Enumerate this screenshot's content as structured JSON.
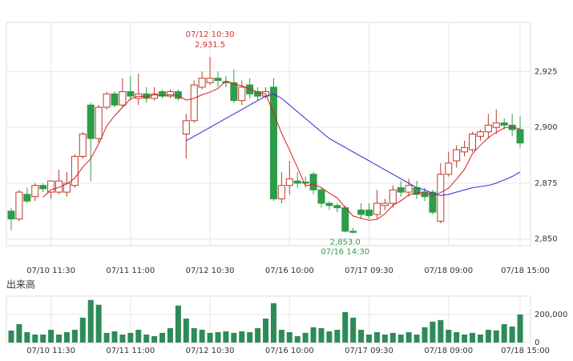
{
  "chart_data": [
    {
      "type": "candlestick",
      "categories": [
        null,
        null,
        null,
        null,
        null,
        "07/10 11:30",
        null,
        null,
        null,
        null,
        null,
        null,
        null,
        null,
        null,
        "07/11 11:00",
        null,
        null,
        null,
        null,
        null,
        null,
        null,
        null,
        null,
        "07/12 10:30",
        null,
        null,
        null,
        null,
        null,
        null,
        null,
        null,
        null,
        "07/16 10:00",
        null,
        null,
        null,
        null,
        null,
        null,
        null,
        null,
        null,
        "07/17 09:30",
        null,
        null,
        null,
        null,
        null,
        null,
        null,
        null,
        null,
        "07/18 09:00",
        null,
        null,
        null,
        null,
        null,
        null,
        null,
        null,
        "07/18 15:00"
      ],
      "open": [
        2862.5,
        2859,
        2870,
        2869,
        2874,
        2871,
        2871,
        2871,
        2874,
        2887,
        2910,
        2895,
        2909,
        2915,
        2910,
        2916,
        2913,
        2915,
        2913,
        2916,
        2914,
        2916,
        2897,
        2903,
        2918,
        2920,
        2922,
        2920.5,
        2920,
        2912,
        2919,
        2916,
        2914,
        2918,
        2868,
        2874,
        2876,
        2875.5,
        2879,
        2872,
        2866,
        2865,
        2864,
        2853.5,
        2863,
        2863,
        2861,
        2865,
        2866,
        2873,
        2871,
        2873,
        2871,
        2871,
        2858,
        2879,
        2885,
        2889,
        2890,
        2896,
        2898,
        2900,
        2902,
        2901,
        2899
      ],
      "high": [
        2864,
        2872,
        2873,
        2875,
        2875,
        2876,
        2881,
        2880,
        2888,
        2898,
        2911,
        2910,
        2916,
        2916,
        2922,
        2923,
        2924,
        2918,
        2918,
        2917,
        2917,
        2917,
        2906,
        2921,
        2925,
        2931.5,
        2925,
        2923,
        2926,
        2921,
        2922,
        2918,
        2918,
        2922,
        2880,
        2885,
        2880,
        2878,
        2880,
        2873,
        2867,
        2866,
        2865,
        2855,
        2866,
        2866,
        2872,
        2868,
        2874,
        2876,
        2877,
        2876,
        2873,
        2872,
        2884,
        2889,
        2892,
        2894,
        2898,
        2899,
        2906,
        2908,
        2904,
        2906,
        2905
      ],
      "low": [
        2854,
        2858,
        2866,
        2867,
        2871,
        2868,
        2870,
        2869,
        2873,
        2886,
        2876,
        2893,
        2908,
        2909,
        2909,
        2912,
        2910,
        2911,
        2912,
        2913,
        2913,
        2912,
        2886,
        2902,
        2917,
        2919,
        2918,
        2918,
        2911,
        2910,
        2913,
        2912,
        2913,
        2867,
        2866,
        2870,
        2873,
        2873,
        2870,
        2864,
        2863,
        2862,
        2853,
        2852.5,
        2859,
        2859,
        2859,
        2863,
        2864,
        2869,
        2869,
        2868,
        2867,
        2861,
        2857,
        2878,
        2882,
        2887,
        2889,
        2894,
        2895,
        2897,
        2899,
        2896,
        2891
      ],
      "close": [
        2859,
        2871,
        2867,
        2874,
        2872.5,
        2876,
        2876,
        2875,
        2887,
        2897,
        2895,
        2909,
        2915,
        2910,
        2916,
        2914,
        2915,
        2913,
        2915,
        2914,
        2916,
        2913,
        2903,
        2919,
        2922,
        2922,
        2921,
        2920,
        2912,
        2918,
        2915,
        2914,
        2916,
        2868,
        2874,
        2877,
        2875,
        2875,
        2872,
        2866,
        2865,
        2864,
        2853.5,
        2853,
        2861,
        2860.5,
        2866,
        2866,
        2872,
        2871,
        2874,
        2870,
        2869,
        2862,
        2879,
        2884,
        2890,
        2891,
        2897,
        2898,
        2901,
        2902,
        2901,
        2899,
        2893
      ],
      "up_color": "#c0392b",
      "down_color": "#2e9c48",
      "lines": [
        {
          "color": "#e0191f",
          "values": [
            null,
            null,
            null,
            null,
            2868.7,
            2872.1,
            2873.1,
            2874.7,
            2877.3,
            2882.2,
            2886,
            2892.6,
            2900.6,
            2905.2,
            2909,
            2912.8,
            2914,
            2913.6,
            2914.6,
            2914.2,
            2914.6,
            2914.2,
            2912.2,
            2913,
            2914.6,
            2915.8,
            2917.4,
            2920.8,
            2919.4,
            2918.6,
            2917.2,
            2915.8,
            2915,
            2906.2,
            2897.4,
            2889.8,
            2882,
            2873.8,
            2874.6,
            2873,
            2870.6,
            2868.4,
            2864.1,
            2860.3,
            2859.3,
            2858.4,
            2858.8,
            2861.3,
            2865.1,
            2867.1,
            2869.8,
            2870.6,
            2871.2,
            2869.2,
            2870.8,
            2872.8,
            2876.8,
            2881.2,
            2888.2,
            2892,
            2895.4,
            2897.8,
            2899.8,
            2900.2,
            2899.2
          ]
        },
        {
          "color": "#2a2ad8",
          "values": [
            null,
            null,
            null,
            null,
            null,
            null,
            null,
            null,
            null,
            null,
            null,
            null,
            null,
            null,
            null,
            null,
            null,
            null,
            null,
            null,
            null,
            null,
            2894,
            2896,
            2898,
            2900,
            2902,
            2904,
            2906,
            2908,
            2910,
            2912,
            2914,
            2915,
            2913,
            2910,
            2907,
            2904,
            2901,
            2898,
            2895,
            2893,
            2891,
            2889,
            2887,
            2885,
            2883,
            2881,
            2879,
            2877,
            2875,
            2873,
            2872,
            2870.5,
            2869.5,
            2870,
            2871,
            2872,
            2873,
            2873.5,
            2874,
            2875,
            2876.5,
            2878,
            2880
          ]
        }
      ],
      "annotations": [
        {
          "time": "07/12 10:30",
          "value": 2931.5,
          "label": "2,931.5"
        },
        {
          "time": "07/16 14:30",
          "value": 2853,
          "label": "2,853.0"
        }
      ],
      "ylim": [
        2847,
        2947
      ],
      "yticks": [
        {
          "value": 2850,
          "label": "2,850"
        },
        {
          "value": 2875,
          "label": "2,875"
        },
        {
          "value": 2900,
          "label": "2,900"
        },
        {
          "value": 2925,
          "label": "2,925"
        }
      ],
      "grid": true
    },
    {
      "type": "bar",
      "title": "出来高",
      "categories": [
        null,
        null,
        null,
        null,
        null,
        "07/10 11:30",
        null,
        null,
        null,
        null,
        null,
        null,
        null,
        null,
        null,
        "07/11 11:00",
        null,
        null,
        null,
        null,
        null,
        null,
        null,
        null,
        null,
        "07/12 10:30",
        null,
        null,
        null,
        null,
        null,
        null,
        null,
        null,
        null,
        "07/16 10:00",
        null,
        null,
        null,
        null,
        null,
        null,
        null,
        null,
        null,
        "07/17 09:30",
        null,
        null,
        null,
        null,
        null,
        null,
        null,
        null,
        null,
        "07/18 09:00",
        null,
        null,
        null,
        null,
        null,
        null,
        null,
        null,
        "07/18 15:00"
      ],
      "values": [
        86000,
        131000,
        74000,
        57000,
        57000,
        91000,
        57000,
        74000,
        91000,
        177000,
        303000,
        269000,
        69000,
        80000,
        57000,
        69000,
        91000,
        57000,
        46000,
        69000,
        103000,
        263000,
        171000,
        103000,
        91000,
        69000,
        74000,
        80000,
        69000,
        80000,
        74000,
        103000,
        171000,
        280000,
        91000,
        74000,
        46000,
        69000,
        109000,
        103000,
        80000,
        91000,
        217000,
        177000,
        91000,
        57000,
        74000,
        57000,
        69000,
        57000,
        74000,
        57000,
        109000,
        149000,
        160000,
        91000,
        74000,
        57000,
        69000,
        57000,
        91000,
        86000,
        131000,
        114000,
        200000
      ],
      "color": "#2e8b57",
      "ylim": [
        0,
        330000
      ],
      "yticks": [
        0,
        {
          "value": 200000,
          "label": "200,000"
        }
      ],
      "grid": true
    }
  ]
}
